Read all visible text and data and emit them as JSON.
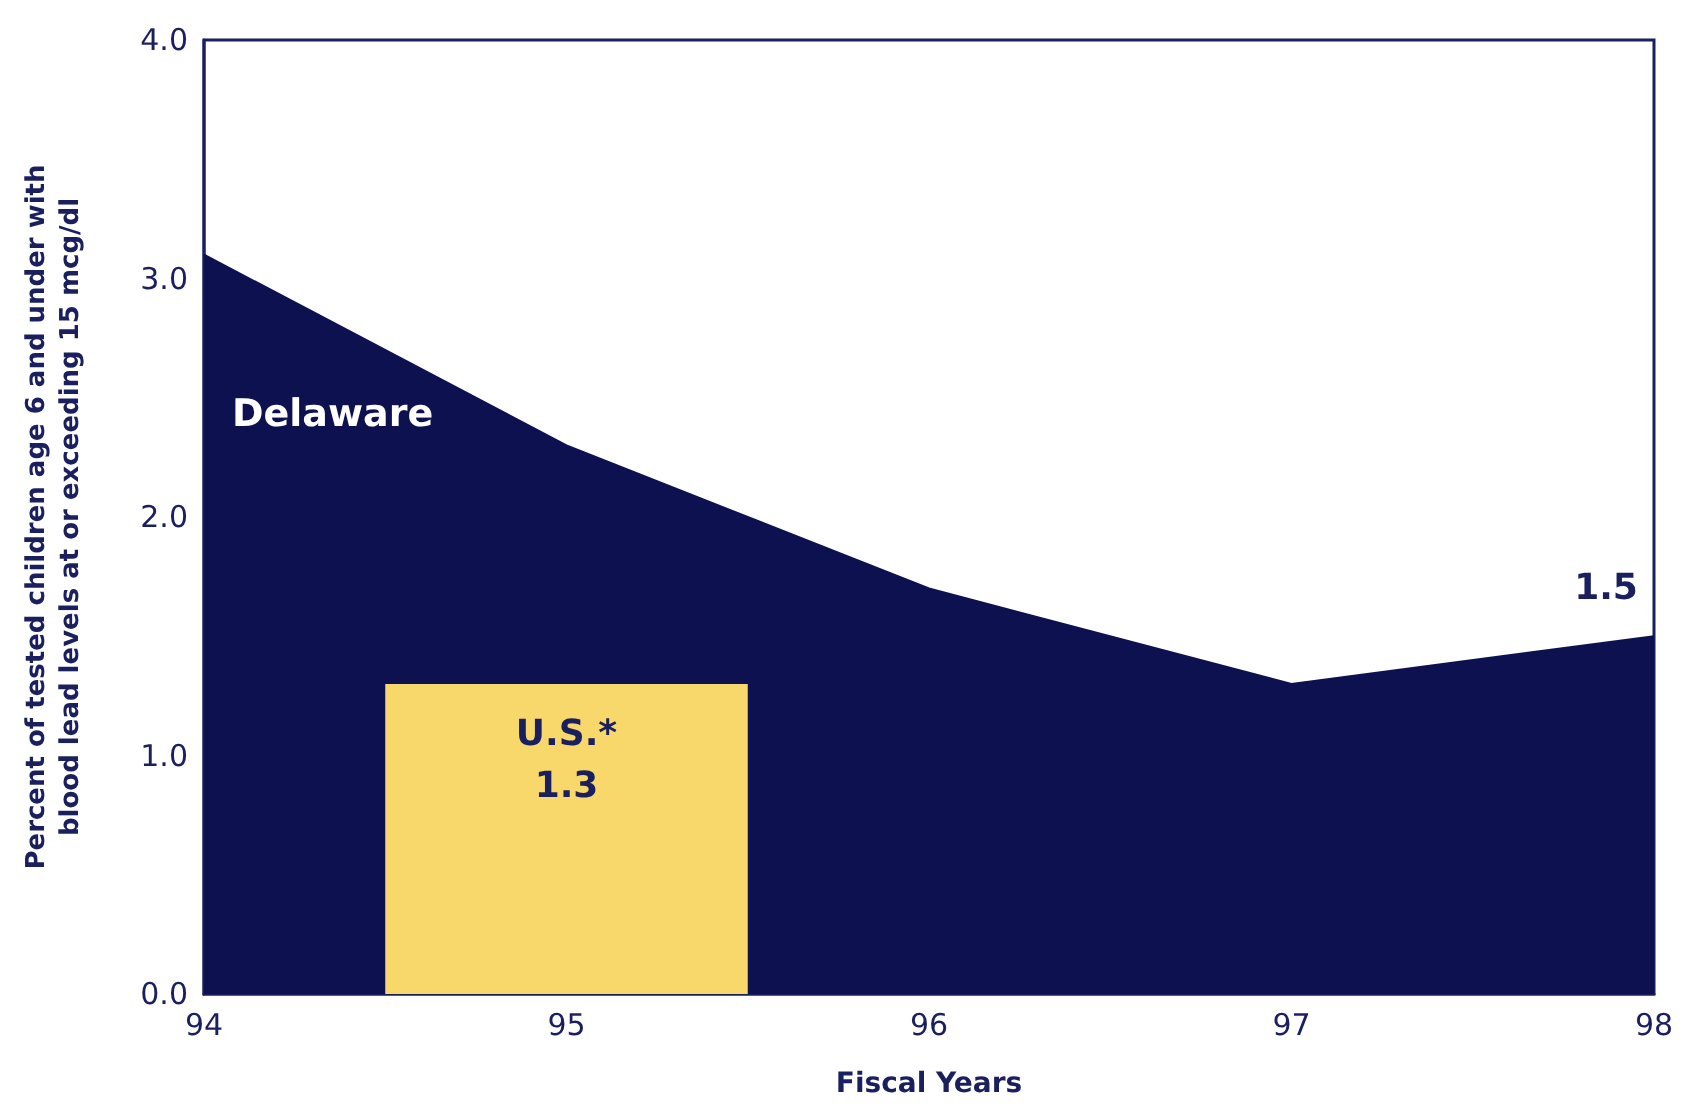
{
  "chart_data": {
    "type": "area",
    "xlabel": "Fiscal Years",
    "ylabel": "Percent of tested children age 6 and under with blood lead levels at or exceeding 15 mcg/dl",
    "x": [
      94,
      95,
      96,
      97,
      98
    ],
    "series": [
      {
        "name": "Delaware",
        "color": "#0d1150",
        "values": [
          3.1,
          2.3,
          1.7,
          1.3,
          1.5
        ],
        "value_labels": [
          null,
          null,
          null,
          null,
          "1.5"
        ]
      },
      {
        "name": "U.S.*",
        "type": "bar",
        "color": "#f9d86b",
        "x": [
          95
        ],
        "values": [
          1.3
        ],
        "value_labels": [
          "1.3"
        ]
      }
    ],
    "xlim": [
      94,
      98
    ],
    "xticks": [
      94,
      95,
      96,
      97,
      98
    ],
    "ylim": [
      0,
      4
    ],
    "yticks": [
      {
        "value": 0,
        "label": "0.0"
      },
      {
        "value": 1,
        "label": "1.0"
      },
      {
        "value": 2,
        "label": "2.0"
      },
      {
        "value": 3,
        "label": "3.0"
      },
      {
        "value": 4,
        "label": "4.0"
      }
    ],
    "grid": false,
    "legend": false
  }
}
